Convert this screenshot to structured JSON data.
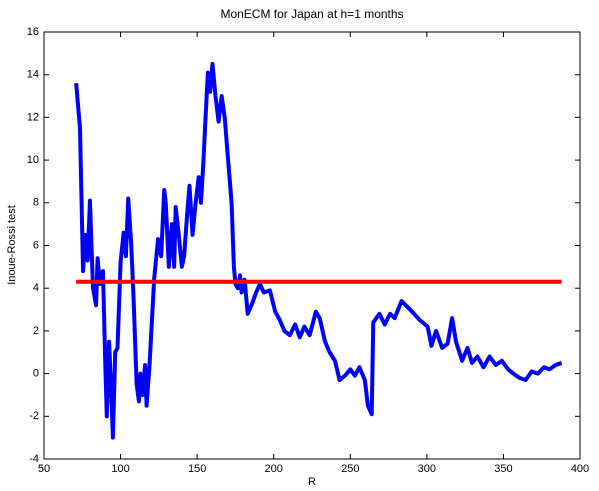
{
  "chart_data": {
    "type": "line",
    "title": "MonECM for Japan at h=1 months",
    "x_label": "R",
    "y_label": "Inoue-Rossi test",
    "xlim": [
      50,
      400
    ],
    "xticks": [
      50,
      100,
      150,
      200,
      250,
      300,
      350,
      400
    ],
    "ylim": [
      -4,
      16
    ],
    "yticks": [
      -4,
      -2,
      0,
      2,
      4,
      6,
      8,
      10,
      12,
      14,
      16
    ],
    "grid": false,
    "series": [
      {
        "color": "#0000ff",
        "x": [
          71,
          73.5,
          75.5,
          77,
          78.5,
          80,
          82,
          84,
          85,
          86.5,
          88.5,
          90,
          91,
          92.5,
          94,
          95,
          96.5,
          98,
          100,
          102,
          103.5,
          105,
          107,
          108.5,
          110.5,
          112,
          113,
          114.5,
          116,
          117,
          119,
          122,
          124.5,
          126.5,
          128.5,
          129.5,
          131.5,
          133.5,
          135,
          136,
          138,
          140,
          141.5,
          143.5,
          145,
          147,
          149,
          151,
          152.5,
          154,
          155.5,
          157,
          158.5,
          160,
          162,
          164,
          166,
          168,
          170,
          172.5,
          174,
          175,
          176.5,
          178,
          179,
          181,
          183,
          186,
          188.5,
          191,
          193.5,
          197.5,
          201,
          204,
          207,
          210.5,
          214,
          217,
          220,
          223.5,
          227.5,
          230,
          233.5,
          236.5,
          240,
          243,
          246.5,
          250,
          253,
          256,
          259.5,
          261.5,
          264,
          265,
          269,
          272.5,
          276,
          279,
          283.5,
          289,
          295.5,
          300.5,
          303,
          306,
          310,
          313.5,
          316.5,
          319,
          323,
          326.5,
          329.5,
          333,
          337,
          341,
          345,
          349,
          353,
          356.5,
          360.5,
          364.5,
          368.5,
          372.5,
          376.5,
          380,
          384,
          388
        ],
        "values": [
          13.6,
          11.5,
          4.8,
          6.5,
          5.3,
          8.1,
          4,
          3.2,
          5.4,
          4.2,
          4.8,
          0.5,
          -2,
          1.5,
          -1,
          -3,
          1,
          1.2,
          5.2,
          6.6,
          5.5,
          8.2,
          6,
          3.5,
          -0.5,
          -1.3,
          0,
          -1,
          0.4,
          -1.5,
          0.5,
          4.5,
          6.3,
          5.5,
          8.6,
          8,
          5,
          7,
          5,
          7.8,
          6.5,
          5,
          5.5,
          7.5,
          8.8,
          6.5,
          8,
          9.2,
          8,
          9.8,
          12,
          14.1,
          13.2,
          14.5,
          13,
          11.8,
          13,
          12,
          10.2,
          8,
          5,
          4.2,
          4,
          4.6,
          3.8,
          4.4,
          2.8,
          3.3,
          3.8,
          4.2,
          3.8,
          3.9,
          2.9,
          2.5,
          2,
          1.8,
          2.3,
          1.7,
          2.2,
          1.8,
          2.9,
          2.6,
          1.5,
          1,
          0.6,
          -0.3,
          -0.1,
          0.2,
          -0.1,
          0.3,
          -0.3,
          -1.5,
          -1.9,
          2.4,
          2.8,
          2.3,
          2.8,
          2.6,
          3.4,
          3,
          2.5,
          2.2,
          1.3,
          2,
          1.2,
          1.4,
          2.6,
          1.5,
          0.6,
          1.2,
          0.5,
          0.8,
          0.3,
          0.8,
          0.4,
          0.6,
          0.2,
          0,
          -0.2,
          -0.3,
          0.1,
          0,
          0.3,
          0.2,
          0.4,
          0.5
        ]
      },
      {
        "color": "#ff0000",
        "x": [
          71,
          388
        ],
        "values": [
          4.3,
          4.3
        ]
      }
    ]
  }
}
